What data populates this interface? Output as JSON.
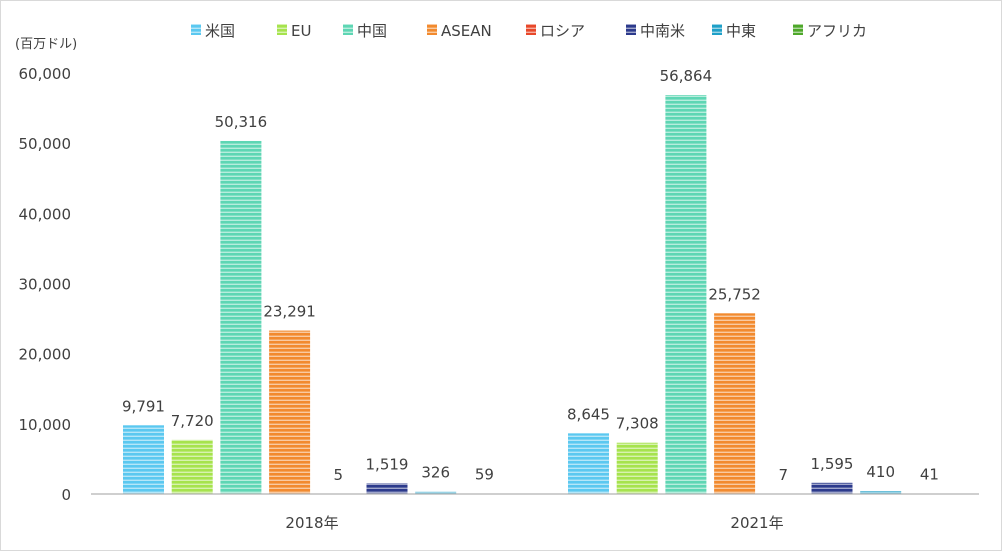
{
  "chart_data": {
    "type": "bar",
    "unit_label": "(百万ドル)",
    "categories": [
      "2018年",
      "2021年"
    ],
    "ylim": [
      0,
      60000
    ],
    "yticks": [
      "0",
      "10,000",
      "20,000",
      "30,000",
      "40,000",
      "50,000",
      "60,000"
    ],
    "grid": false,
    "legend_position": "top",
    "series": [
      {
        "name": "米国",
        "color": "#5bc8f0",
        "values": [
          9791,
          8645
        ],
        "labels": [
          "9,791",
          "8,645"
        ]
      },
      {
        "name": "EU",
        "color": "#a6e34d",
        "values": [
          7720,
          7308
        ],
        "labels": [
          "7,720",
          "7,308"
        ]
      },
      {
        "name": "中国",
        "color": "#5ed6b4",
        "values": [
          50316,
          56864
        ],
        "labels": [
          "50,316",
          "56,864"
        ]
      },
      {
        "name": "ASEAN",
        "color": "#f28a2e",
        "values": [
          23291,
          25752
        ],
        "labels": [
          "23,291",
          "25,752"
        ]
      },
      {
        "name": "ロシア",
        "color": "#e8482a",
        "values": [
          5,
          7
        ],
        "labels": [
          "5",
          "7"
        ]
      },
      {
        "name": "中南米",
        "color": "#2c3a8c",
        "values": [
          1519,
          1595
        ],
        "labels": [
          "1,519",
          "1,595"
        ]
      },
      {
        "name": "中東",
        "color": "#1fa0c8",
        "values": [
          326,
          410
        ],
        "labels": [
          "326",
          "410"
        ]
      },
      {
        "name": "アフリカ",
        "color": "#4ea82a",
        "values": [
          59,
          41
        ],
        "labels": [
          "59",
          "41"
        ]
      }
    ]
  }
}
